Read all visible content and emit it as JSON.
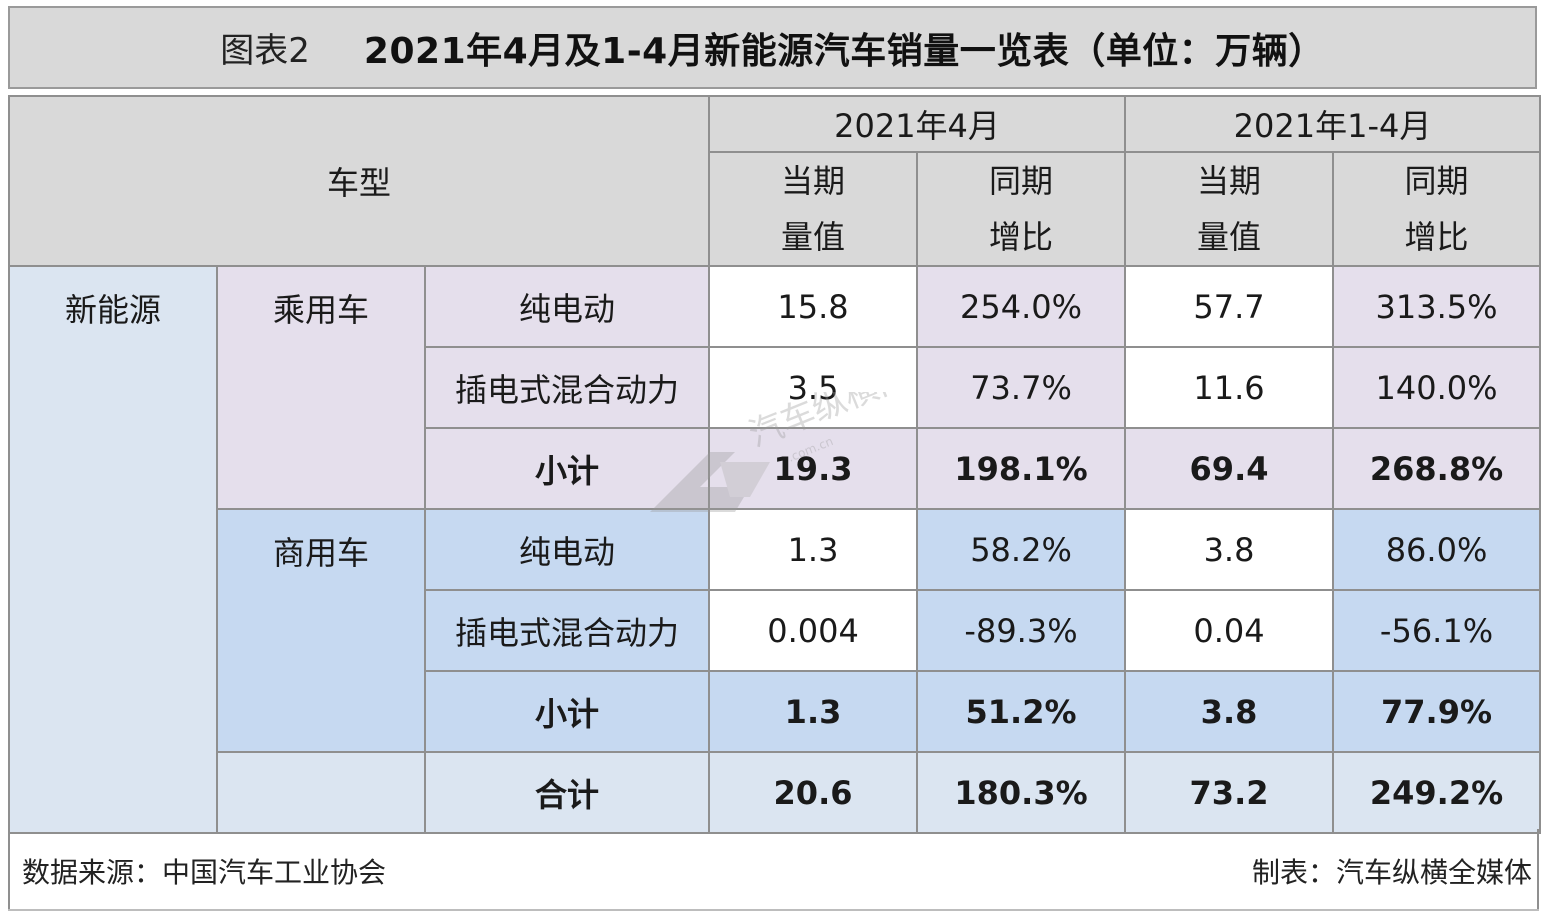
{
  "title": {
    "prefix": "图表2",
    "main": "2021年4月及1-4月新能源汽车销量一览表（单位：万辆）"
  },
  "table": {
    "header": {
      "model": "车型",
      "period1": "2021年4月",
      "period2": "2021年1-4月",
      "current_l1": "当期",
      "current_l2": "量值",
      "yoy_l1": "同期",
      "yoy_l2": "增比"
    },
    "category": "新能源",
    "passenger": {
      "label": "乘用车",
      "rows": [
        {
          "type": "纯电动",
          "apr_val": "15.8",
          "apr_yoy": "254.0%",
          "ytd_val": "57.7",
          "ytd_yoy": "313.5%"
        },
        {
          "type": "插电式混合动力",
          "apr_val": "3.5",
          "apr_yoy": "73.7%",
          "ytd_val": "11.6",
          "ytd_yoy": "140.0%"
        }
      ],
      "subtotal": {
        "label": "小计",
        "apr_val": "19.3",
        "apr_yoy": "198.1%",
        "ytd_val": "69.4",
        "ytd_yoy": "268.8%"
      }
    },
    "commercial": {
      "label": "商用车",
      "rows": [
        {
          "type": "纯电动",
          "apr_val": "1.3",
          "apr_yoy": "58.2%",
          "ytd_val": "3.8",
          "ytd_yoy": "86.0%"
        },
        {
          "type": "插电式混合动力",
          "apr_val": "0.004",
          "apr_yoy": "-89.3%",
          "ytd_val": "0.04",
          "ytd_yoy": "-56.1%"
        }
      ],
      "subtotal": {
        "label": "小计",
        "apr_val": "1.3",
        "apr_yoy": "51.2%",
        "ytd_val": "3.8",
        "ytd_yoy": "77.9%"
      }
    },
    "total": {
      "label": "合计",
      "apr_val": "20.6",
      "apr_yoy": "180.3%",
      "ytd_val": "73.2",
      "ytd_yoy": "249.2%"
    }
  },
  "footer": {
    "source": "数据来源：中国汽车工业协会",
    "maker": "制表：汽车纵横全媒体"
  },
  "watermark": {
    "text": "汽车纵横网",
    "domain": ".com.cn"
  }
}
